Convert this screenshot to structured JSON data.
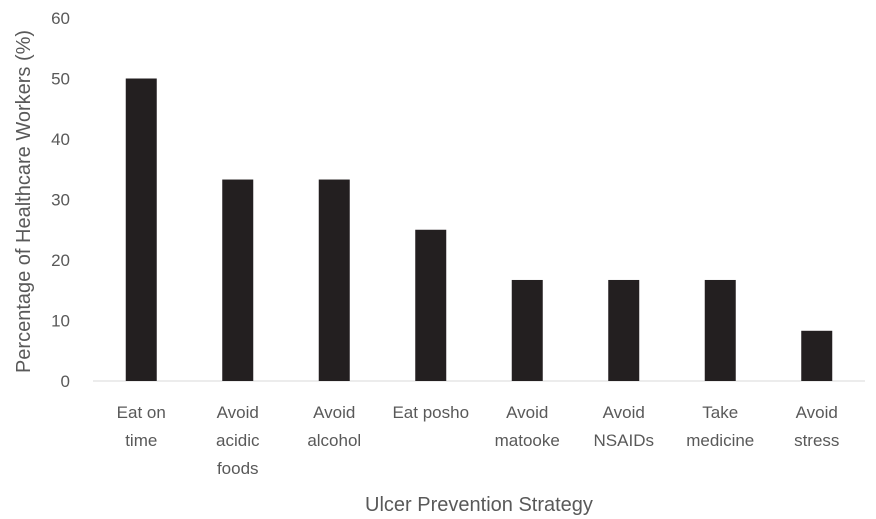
{
  "chart_data": {
    "type": "bar",
    "title": "",
    "xlabel": "Ulcer Prevention Strategy",
    "ylabel": "Percentage of Healthcare Workers (%)",
    "ylim": [
      0,
      60
    ],
    "yticks": [
      0,
      10,
      20,
      30,
      40,
      50,
      60
    ],
    "grid": false,
    "bar_color": "#231f20",
    "categories": [
      [
        "Eat on",
        "time"
      ],
      [
        "Avoid",
        "acidic",
        "foods"
      ],
      [
        "Avoid",
        "alcohol"
      ],
      [
        "Eat posho"
      ],
      [
        "Avoid",
        "matooke"
      ],
      [
        "Avoid",
        "NSAIDs"
      ],
      [
        "Take",
        "medicine"
      ],
      [
        "Avoid",
        "stress"
      ]
    ],
    "values": [
      50,
      33.3,
      33.3,
      25,
      16.7,
      16.7,
      16.7,
      8.3
    ]
  }
}
